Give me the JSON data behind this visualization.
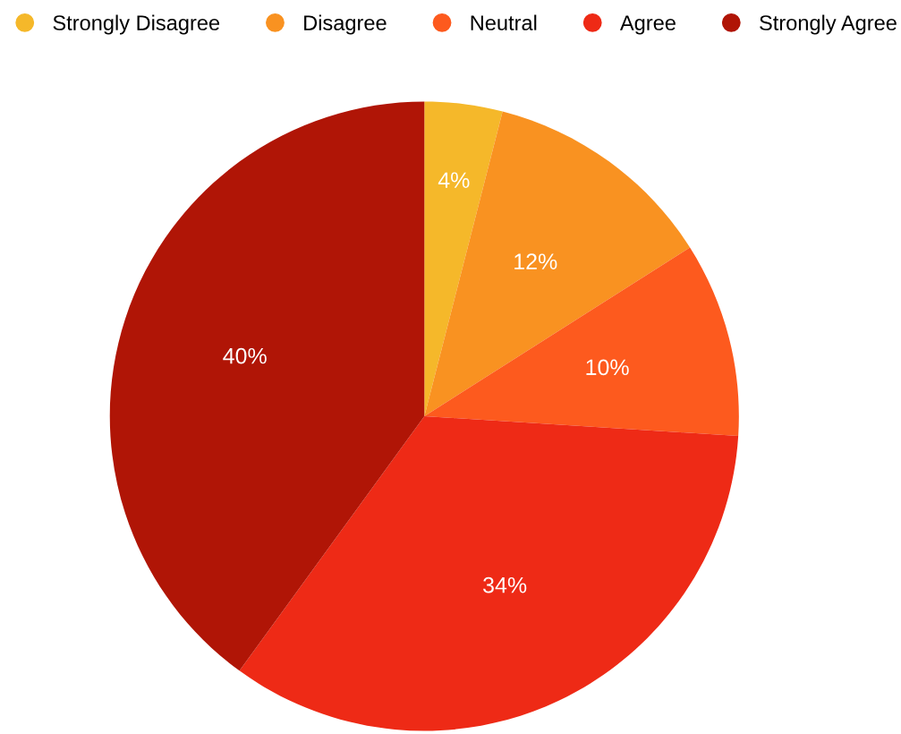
{
  "chart_data": {
    "type": "pie",
    "categories": [
      "Strongly Disagree",
      "Disagree",
      "Neutral",
      "Agree",
      "Strongly Agree"
    ],
    "values": [
      4,
      12,
      10,
      34,
      40
    ],
    "colors": [
      "#f5b82a",
      "#f99221",
      "#fd5a1e",
      "#ee2a16",
      "#b01506"
    ],
    "value_labels": [
      "4%",
      "12%",
      "10%",
      "34%",
      "40%"
    ],
    "legend": "top"
  }
}
